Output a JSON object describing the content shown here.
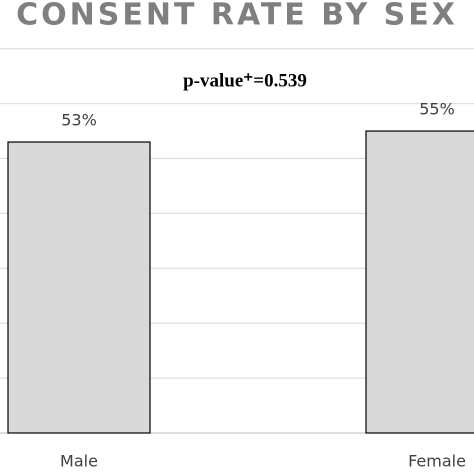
{
  "chart_data": {
    "type": "bar",
    "title": "CONSENT RATE BY SEX",
    "annotation": "p-value⁺=0.539",
    "categories": [
      "Male",
      "Female"
    ],
    "values": [
      53,
      55
    ],
    "value_labels": [
      "53%",
      "55%"
    ],
    "color": "#d9d9d9",
    "ylim": [
      0,
      70
    ],
    "yticks": [
      0,
      10,
      20,
      30,
      40,
      50,
      60,
      70
    ],
    "grid": true
  }
}
